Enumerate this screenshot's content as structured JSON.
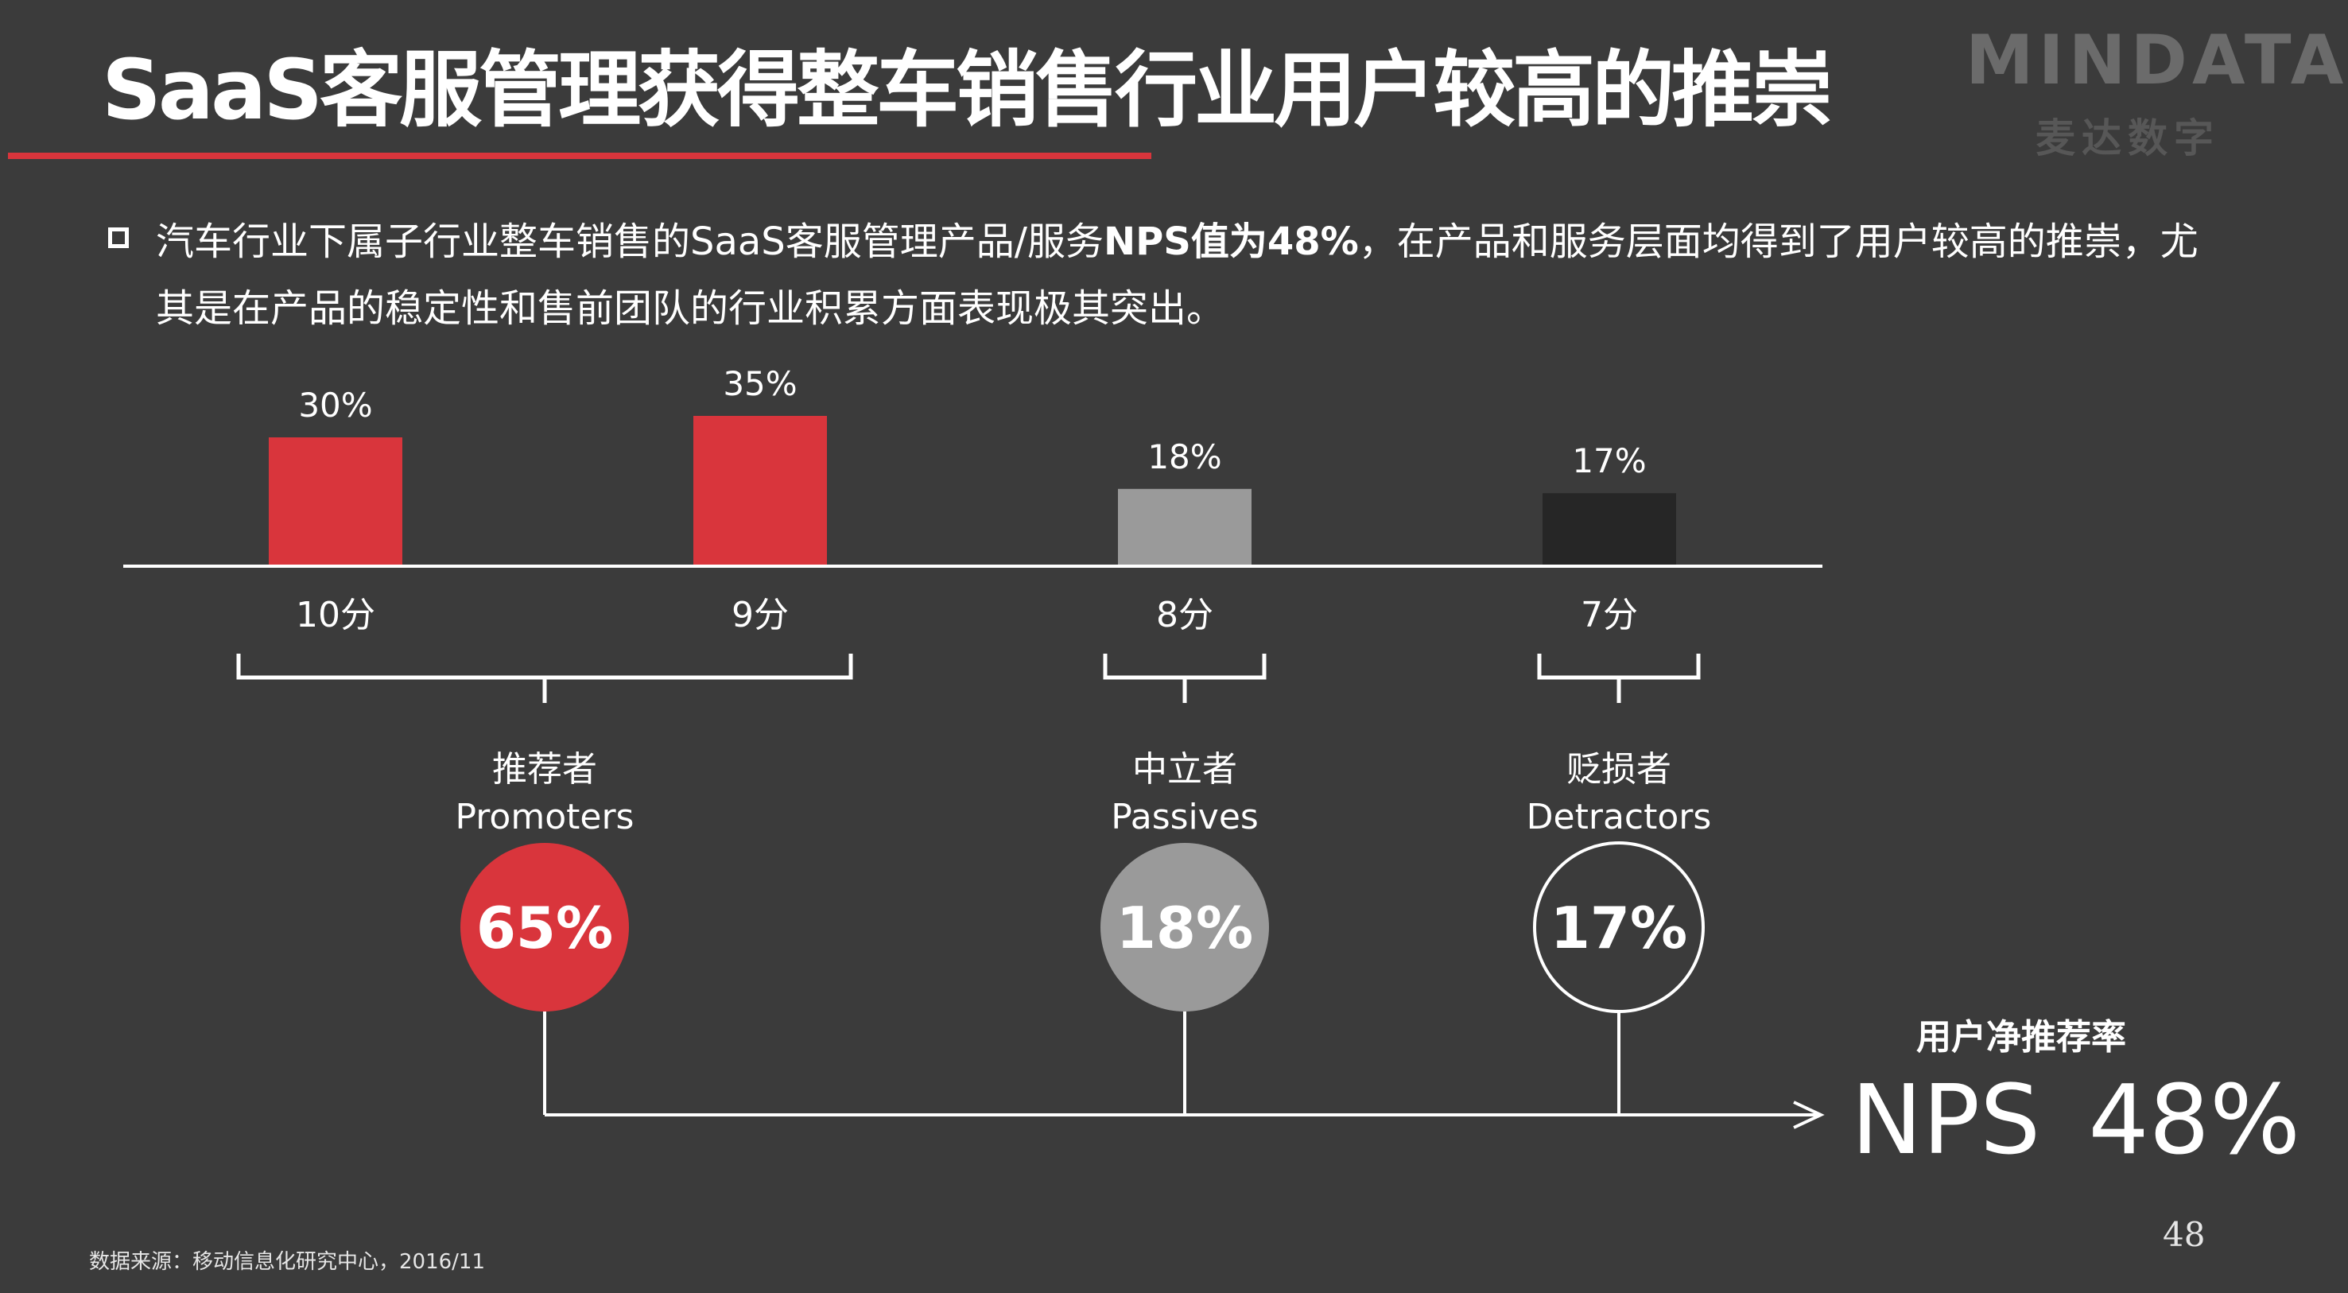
{
  "header": {
    "title": "SaaS客服管理获得整车销售行业用户较高的推崇",
    "logo_text": "MINDATA",
    "logo_subtext": "麦达数字"
  },
  "bullet": {
    "pre": "汽车行业下属子行业整车销售的SaaS客服管理产品/服务",
    "bold": "NPS值为48%",
    "post": "，在产品和服务层面均得到了用户较高的推崇，尤其是在产品的稳定性和售前团队的行业积累方面表现极其突出。"
  },
  "chart_data": {
    "type": "bar",
    "categories": [
      "10分",
      "9分",
      "8分",
      "7分"
    ],
    "values": [
      30,
      35,
      18,
      17
    ],
    "value_labels": [
      "30%",
      "35%",
      "18%",
      "17%"
    ],
    "ylim": [
      0,
      40
    ],
    "colors": [
      "#d9353c",
      "#d9353c",
      "#9a9a9a",
      "#262626"
    ],
    "groups": [
      {
        "name_cn": "推荐者",
        "name_en": "Promoters",
        "value": 65,
        "label": "65%",
        "style": "filled-red",
        "color": "#d9353c"
      },
      {
        "name_cn": "中立者",
        "name_en": "Passives",
        "value": 18,
        "label": "18%",
        "style": "filled-gray",
        "color": "#9a9a9a"
      },
      {
        "name_cn": "贬损者",
        "name_en": "Detractors",
        "value": 17,
        "label": "17%",
        "style": "outline",
        "color": "#ffffff"
      }
    ]
  },
  "nps": {
    "caption": "用户净推荐率",
    "label": "NPS",
    "value": "48%"
  },
  "footer": {
    "source": "数据来源：移动信息化研究中心，2016/11",
    "page_number": "48"
  }
}
